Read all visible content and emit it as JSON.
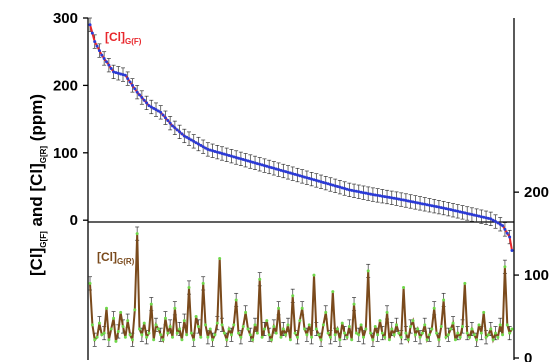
{
  "chart_data": {
    "type": "line",
    "ylabel": {
      "p1": "[Cl]",
      "s1": "G[F]",
      "p2": " and [Cl]",
      "s2": "G[R]",
      "p3": " (ppm)"
    },
    "left_axis": {
      "ylim": [
        -200,
        300
      ],
      "ticks": [
        0,
        100,
        200,
        300
      ]
    },
    "right_axis": {
      "ylim": [
        0,
        410
      ],
      "ticks": [
        0,
        100,
        200
      ]
    },
    "n_points": 180,
    "series": [
      {
        "name": "[Cl]G(F)",
        "label_main": "[Cl]",
        "label_sub": "G(F)",
        "axis": "left",
        "line_color": "#e8272c",
        "marker_color": "#2a3bd6",
        "knots_x": [
          0,
          2,
          5,
          10,
          15,
          20,
          25,
          30,
          35,
          40,
          50,
          60,
          70,
          80,
          90,
          100,
          110,
          120,
          130,
          140,
          150,
          160,
          165,
          170,
          175,
          178,
          179
        ],
        "knots_y": [
          290,
          265,
          245,
          220,
          215,
          190,
          170,
          160,
          140,
          125,
          105,
          95,
          85,
          75,
          65,
          55,
          45,
          38,
          32,
          25,
          18,
          10,
          6,
          2,
          -8,
          -25,
          -45
        ],
        "error_bar": 10
      },
      {
        "name": "[Cl]G(R)",
        "label_main": "[Cl]",
        "label_sub": "G(R)",
        "axis": "right",
        "line_color": "#7a4a1c",
        "marker_color": "#6fd84a",
        "values": [
          90,
          40,
          22,
          25,
          42,
          28,
          30,
          60,
          22,
          35,
          48,
          20,
          32,
          55,
          38,
          25,
          45,
          28,
          22,
          58,
          150,
          35,
          28,
          42,
          25,
          30,
          65,
          22,
          40,
          35,
          28,
          22,
          48,
          30,
          38,
          25,
          60,
          30,
          35,
          22,
          45,
          28,
          85,
          30,
          22,
          50,
          38,
          25,
          90,
          40,
          25,
          35,
          22,
          28,
          42,
          120,
          40,
          30,
          22,
          35,
          28,
          40,
          70,
          30,
          25,
          38,
          55,
          35,
          28,
          22,
          40,
          30,
          95,
          25,
          35,
          45,
          28,
          22,
          38,
          30,
          60,
          25,
          35,
          28,
          40,
          22,
          75,
          30,
          25,
          45,
          60,
          35,
          28,
          40,
          25,
          100,
          35,
          28,
          22,
          40,
          55,
          30,
          25,
          80,
          28,
          35,
          22,
          42,
          30,
          25,
          38,
          22,
          65,
          30,
          28,
          40,
          25,
          35,
          105,
          30,
          22,
          38,
          28,
          45,
          30,
          25,
          55,
          22,
          35,
          28,
          40,
          30,
          25,
          85,
          30,
          22,
          38,
          45,
          28,
          35,
          25,
          30,
          40,
          22,
          28,
          35,
          60,
          30,
          22,
          38,
          70,
          25,
          28,
          35,
          42,
          22,
          30,
          25,
          38,
          90,
          30,
          25,
          35,
          28,
          22,
          40,
          30,
          55,
          25,
          28,
          35,
          22,
          30,
          25,
          40,
          28,
          110,
          40,
          30,
          35
        ],
        "error_bar": 8
      }
    ]
  }
}
